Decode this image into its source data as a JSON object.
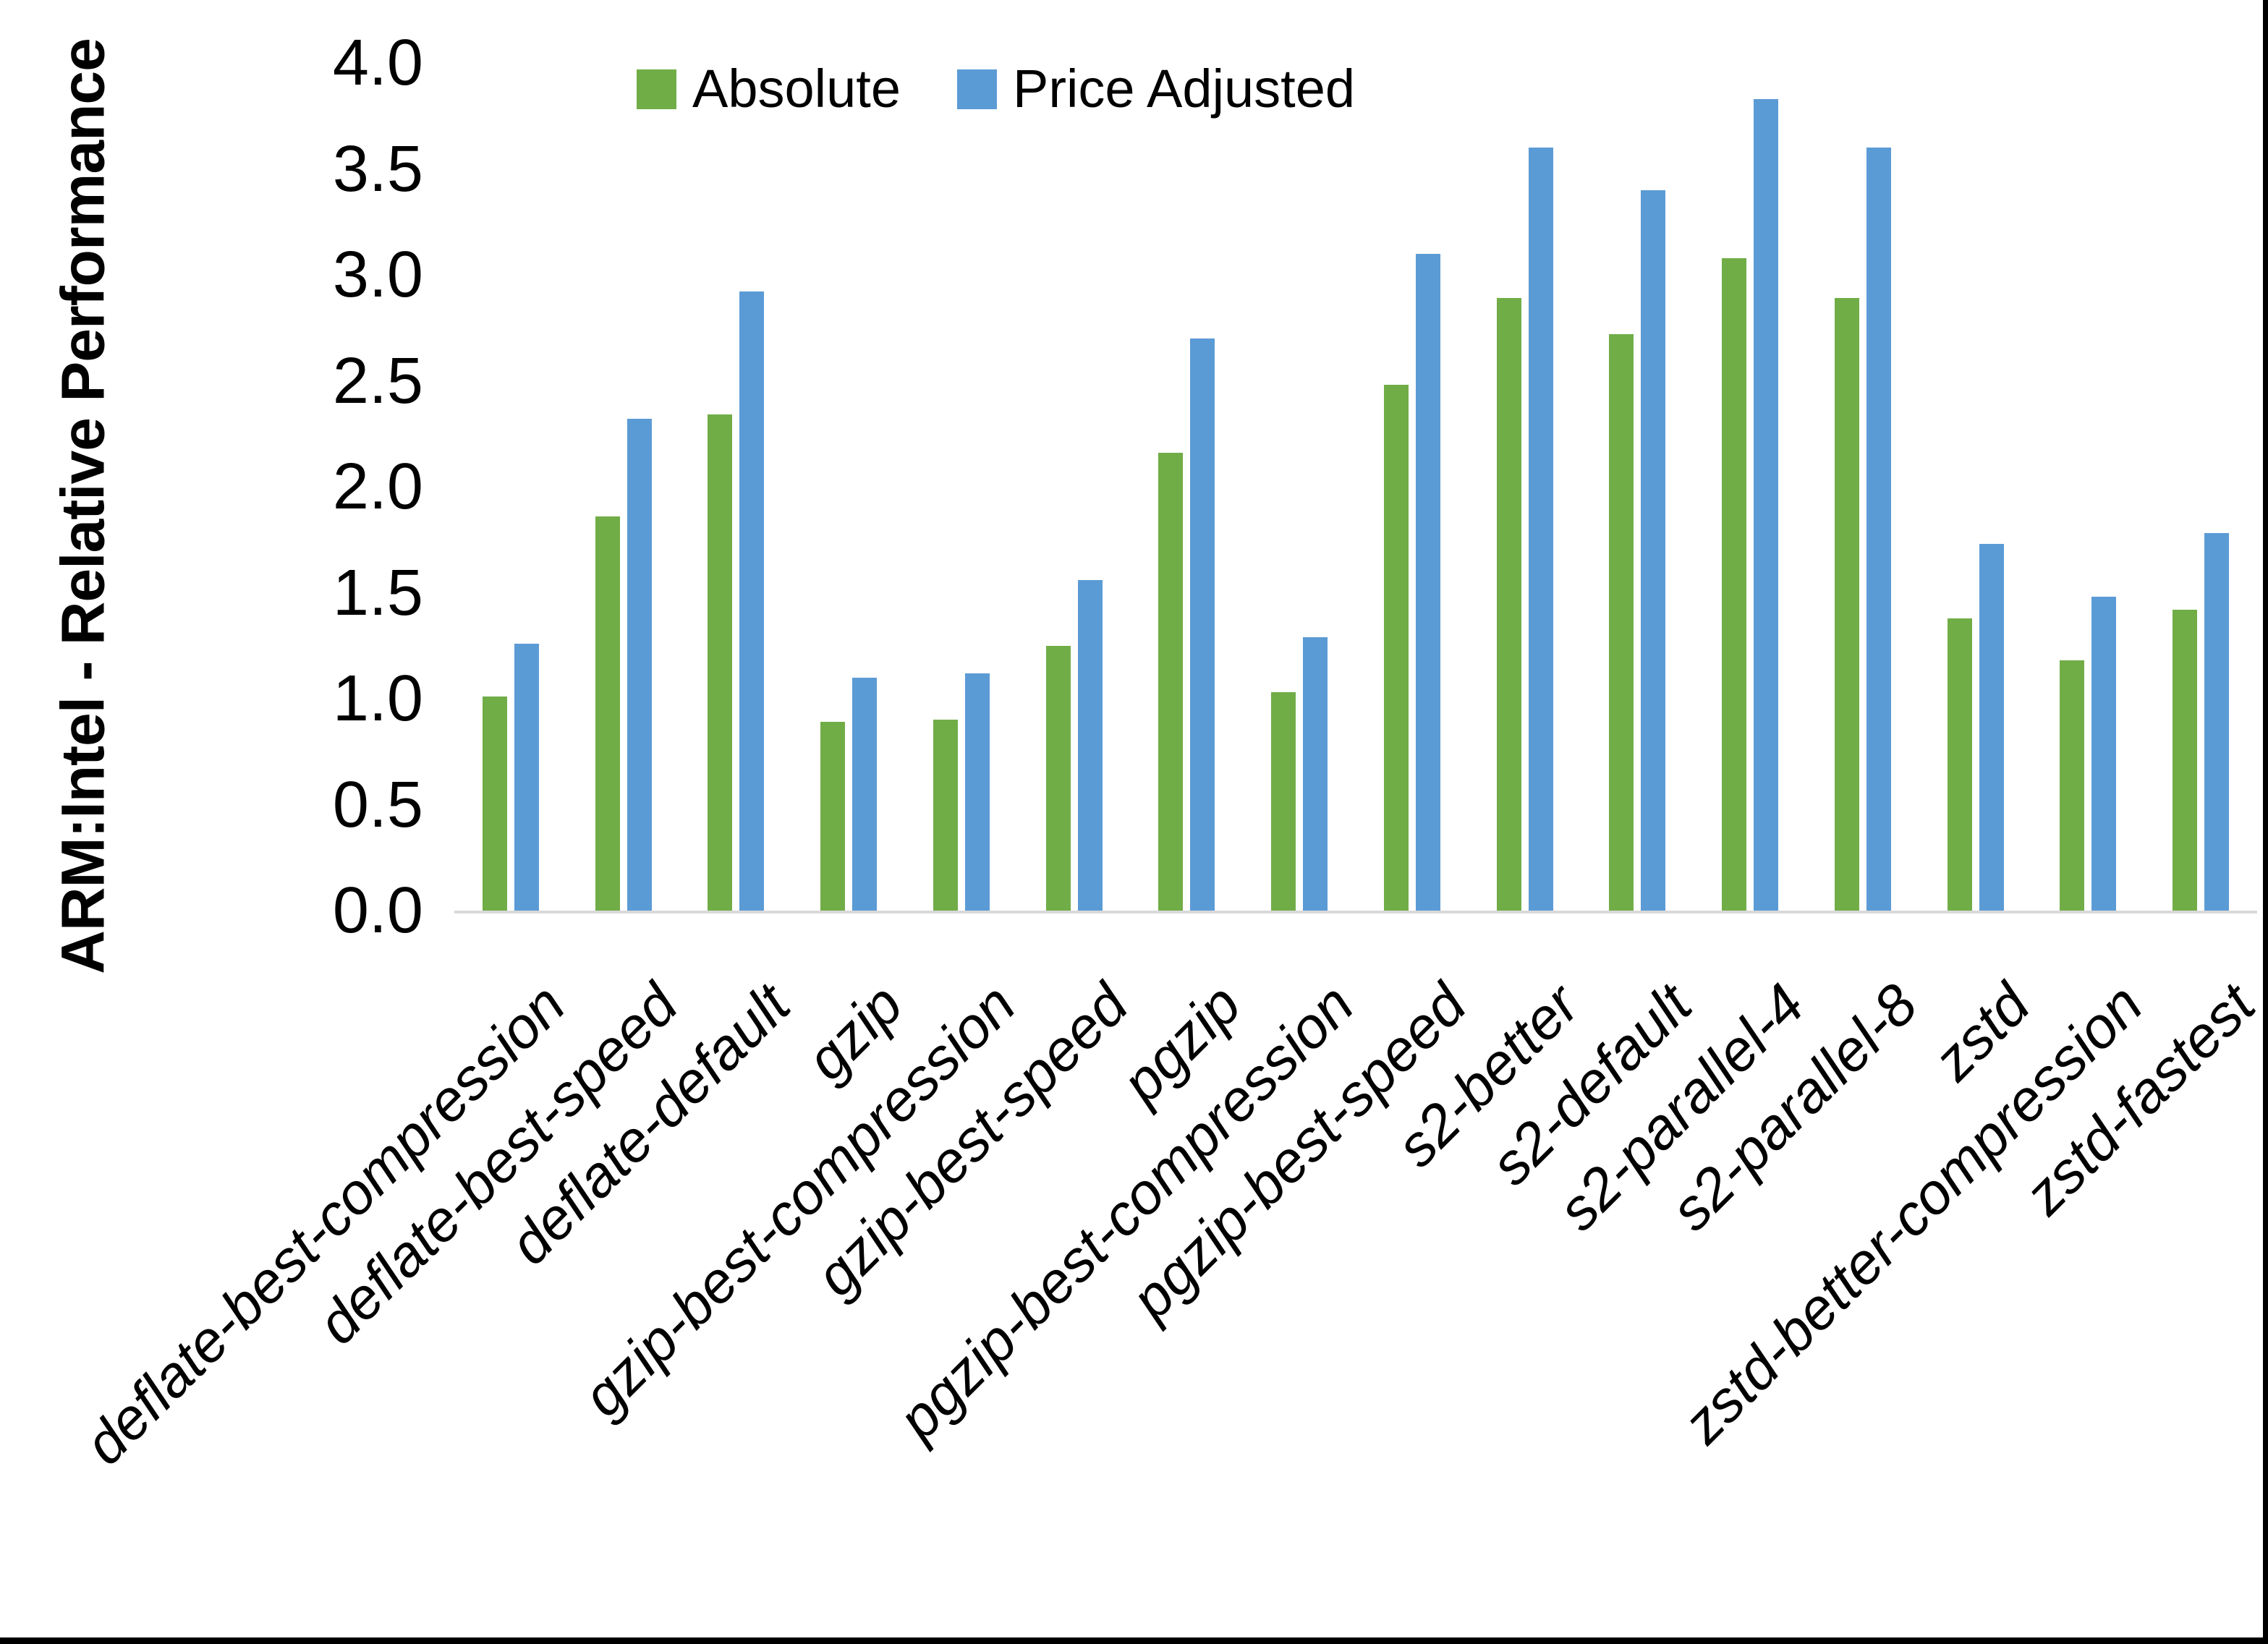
{
  "chart_data": {
    "type": "bar",
    "title": "",
    "xlabel": "",
    "ylabel": "ARM:Intel - Relative Performance",
    "ylim": [
      0,
      4
    ],
    "ytick_labels": [
      "0.0",
      "0.5",
      "1.0",
      "1.5",
      "2.0",
      "2.5",
      "3.0",
      "3.5",
      "4.0"
    ],
    "grid": false,
    "legend_position": "top-center",
    "axis_line_color": "#D9D9D9",
    "categories": [
      "deflate-best-compression",
      "deflate-best-speed",
      "deflate-default",
      "gzip",
      "gzip-best-compression",
      "gzip-best-speed",
      "pgzip",
      "pgzip-best-compression",
      "pgzip-best-speed",
      "s2-better",
      "s2-default",
      "s2-parallel-4",
      "s2-parallel-8",
      "zstd",
      "zstd-better-compression",
      "zstd-fastest"
    ],
    "series": [
      {
        "name": "Absolute",
        "color": "#70AD47",
        "values": [
          1.01,
          1.86,
          2.34,
          0.89,
          0.9,
          1.25,
          2.16,
          1.03,
          2.48,
          2.89,
          2.72,
          3.08,
          2.89,
          1.38,
          1.18,
          1.42
        ]
      },
      {
        "name": "Price Adjusted",
        "color": "#5B9BD5",
        "values": [
          1.26,
          2.32,
          2.92,
          1.1,
          1.12,
          1.56,
          2.7,
          1.29,
          3.1,
          3.6,
          3.4,
          3.83,
          3.6,
          1.73,
          1.48,
          1.78
        ]
      }
    ]
  }
}
